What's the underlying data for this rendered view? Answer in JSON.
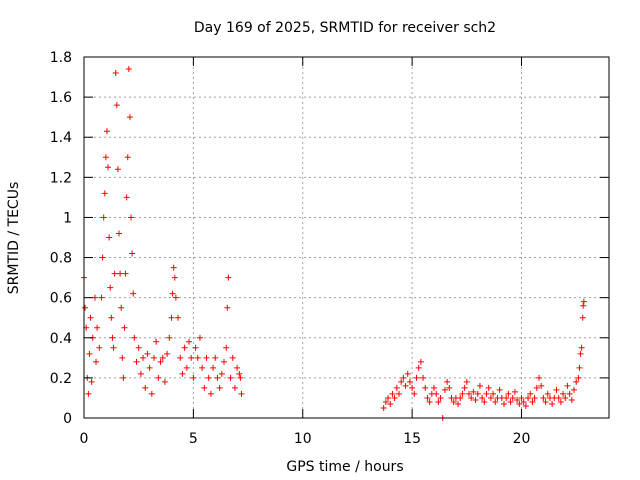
{
  "chart_data": {
    "type": "scatter",
    "title": "Day 169 of 2025, SRMTID for receiver sch2",
    "xlabel": "GPS time / hours",
    "ylabel": "SRMTID / TECUs",
    "xlim": [
      0,
      24
    ],
    "ylim": [
      0,
      1.8
    ],
    "xticks": [
      0,
      5,
      10,
      15,
      20
    ],
    "xtick_labels": [
      "0",
      "5",
      "10",
      "15",
      "20"
    ],
    "yticks": [
      0,
      0.2,
      0.4,
      0.6,
      0.8,
      1,
      1.2,
      1.4,
      1.6,
      1.8
    ],
    "ytick_labels": [
      "0",
      "0.2",
      "0.4",
      "0.6",
      "0.8",
      "1",
      "1.2",
      "1.4",
      "1.6",
      "1.8"
    ],
    "grid": true,
    "marker": "plus",
    "marker_color": "#ff0000",
    "series": [
      {
        "name": "SRMTID",
        "points": [
          [
            0.0,
            0.7
          ],
          [
            0.05,
            0.55
          ],
          [
            0.1,
            0.45
          ],
          [
            0.15,
            0.2
          ],
          [
            0.2,
            0.12
          ],
          [
            0.25,
            0.32
          ],
          [
            0.3,
            0.5
          ],
          [
            0.35,
            0.18
          ],
          [
            0.4,
            0.4
          ],
          [
            0.5,
            0.6
          ],
          [
            0.55,
            0.28
          ],
          [
            0.6,
            0.45
          ],
          [
            0.7,
            0.35
          ],
          [
            0.8,
            0.6
          ],
          [
            0.85,
            0.8
          ],
          [
            0.9,
            1.0
          ],
          [
            0.95,
            1.12
          ],
          [
            1.0,
            1.3
          ],
          [
            1.05,
            1.43
          ],
          [
            1.1,
            1.25
          ],
          [
            1.15,
            0.9
          ],
          [
            1.2,
            0.65
          ],
          [
            1.25,
            0.5
          ],
          [
            1.3,
            0.4
          ],
          [
            1.35,
            0.35
          ],
          [
            1.4,
            0.72
          ],
          [
            1.45,
            1.72
          ],
          [
            1.5,
            1.56
          ],
          [
            1.55,
            1.24
          ],
          [
            1.6,
            0.92
          ],
          [
            1.65,
            0.72
          ],
          [
            1.7,
            0.55
          ],
          [
            1.75,
            0.3
          ],
          [
            1.8,
            0.2
          ],
          [
            1.85,
            0.45
          ],
          [
            1.9,
            0.72
          ],
          [
            1.95,
            1.1
          ],
          [
            2.0,
            1.3
          ],
          [
            2.05,
            1.74
          ],
          [
            2.1,
            1.5
          ],
          [
            2.15,
            1.0
          ],
          [
            2.2,
            0.82
          ],
          [
            2.25,
            0.62
          ],
          [
            2.3,
            0.4
          ],
          [
            2.4,
            0.28
          ],
          [
            2.5,
            0.35
          ],
          [
            2.6,
            0.22
          ],
          [
            2.7,
            0.3
          ],
          [
            2.8,
            0.15
          ],
          [
            2.9,
            0.32
          ],
          [
            3.0,
            0.25
          ],
          [
            3.1,
            0.12
          ],
          [
            3.2,
            0.3
          ],
          [
            3.3,
            0.38
          ],
          [
            3.4,
            0.2
          ],
          [
            3.5,
            0.28
          ],
          [
            3.6,
            0.3
          ],
          [
            3.7,
            0.18
          ],
          [
            3.8,
            0.32
          ],
          [
            3.9,
            0.4
          ],
          [
            4.0,
            0.5
          ],
          [
            4.05,
            0.62
          ],
          [
            4.1,
            0.75
          ],
          [
            4.15,
            0.7
          ],
          [
            4.2,
            0.6
          ],
          [
            4.3,
            0.5
          ],
          [
            4.4,
            0.3
          ],
          [
            4.5,
            0.22
          ],
          [
            4.6,
            0.35
          ],
          [
            4.7,
            0.25
          ],
          [
            4.8,
            0.38
          ],
          [
            4.9,
            0.3
          ],
          [
            5.0,
            0.2
          ],
          [
            5.1,
            0.35
          ],
          [
            5.2,
            0.3
          ],
          [
            5.3,
            0.4
          ],
          [
            5.4,
            0.25
          ],
          [
            5.5,
            0.15
          ],
          [
            5.6,
            0.3
          ],
          [
            5.7,
            0.2
          ],
          [
            5.8,
            0.12
          ],
          [
            5.9,
            0.25
          ],
          [
            6.0,
            0.3
          ],
          [
            6.1,
            0.2
          ],
          [
            6.2,
            0.15
          ],
          [
            6.3,
            0.22
          ],
          [
            6.4,
            0.28
          ],
          [
            6.5,
            0.35
          ],
          [
            6.55,
            0.55
          ],
          [
            6.6,
            0.7
          ],
          [
            6.7,
            0.2
          ],
          [
            6.8,
            0.3
          ],
          [
            6.9,
            0.15
          ],
          [
            7.0,
            0.25
          ],
          [
            7.1,
            0.22
          ],
          [
            7.15,
            0.2
          ],
          [
            7.2,
            0.12
          ],
          [
            13.7,
            0.05
          ],
          [
            13.8,
            0.08
          ],
          [
            13.9,
            0.1
          ],
          [
            14.0,
            0.07
          ],
          [
            14.1,
            0.12
          ],
          [
            14.2,
            0.1
          ],
          [
            14.3,
            0.15
          ],
          [
            14.4,
            0.12
          ],
          [
            14.5,
            0.18
          ],
          [
            14.6,
            0.2
          ],
          [
            14.7,
            0.16
          ],
          [
            14.8,
            0.22
          ],
          [
            14.9,
            0.18
          ],
          [
            15.0,
            0.15
          ],
          [
            15.1,
            0.12
          ],
          [
            15.2,
            0.2
          ],
          [
            15.3,
            0.25
          ],
          [
            15.4,
            0.28
          ],
          [
            15.5,
            0.2
          ],
          [
            15.6,
            0.15
          ],
          [
            15.7,
            0.1
          ],
          [
            15.8,
            0.08
          ],
          [
            15.9,
            0.12
          ],
          [
            16.0,
            0.15
          ],
          [
            16.1,
            0.12
          ],
          [
            16.2,
            0.08
          ],
          [
            16.3,
            0.1
          ],
          [
            16.4,
            0.0
          ],
          [
            16.5,
            0.14
          ],
          [
            16.6,
            0.18
          ],
          [
            16.7,
            0.15
          ],
          [
            16.8,
            0.1
          ],
          [
            16.9,
            0.08
          ],
          [
            17.0,
            0.1
          ],
          [
            17.1,
            0.07
          ],
          [
            17.2,
            0.1
          ],
          [
            17.3,
            0.12
          ],
          [
            17.4,
            0.15
          ],
          [
            17.5,
            0.18
          ],
          [
            17.6,
            0.12
          ],
          [
            17.7,
            0.1
          ],
          [
            17.8,
            0.13
          ],
          [
            17.9,
            0.09
          ],
          [
            18.0,
            0.12
          ],
          [
            18.1,
            0.16
          ],
          [
            18.2,
            0.1
          ],
          [
            18.3,
            0.08
          ],
          [
            18.4,
            0.12
          ],
          [
            18.5,
            0.15
          ],
          [
            18.6,
            0.1
          ],
          [
            18.7,
            0.12
          ],
          [
            18.8,
            0.08
          ],
          [
            18.9,
            0.1
          ],
          [
            19.0,
            0.14
          ],
          [
            19.1,
            0.1
          ],
          [
            19.2,
            0.07
          ],
          [
            19.3,
            0.1
          ],
          [
            19.4,
            0.12
          ],
          [
            19.5,
            0.08
          ],
          [
            19.6,
            0.1
          ],
          [
            19.7,
            0.13
          ],
          [
            19.8,
            0.09
          ],
          [
            19.9,
            0.07
          ],
          [
            20.0,
            0.1
          ],
          [
            20.1,
            0.08
          ],
          [
            20.2,
            0.06
          ],
          [
            20.3,
            0.1
          ],
          [
            20.4,
            0.12
          ],
          [
            20.5,
            0.08
          ],
          [
            20.6,
            0.1
          ],
          [
            20.7,
            0.15
          ],
          [
            20.8,
            0.2
          ],
          [
            20.9,
            0.16
          ],
          [
            21.0,
            0.1
          ],
          [
            21.1,
            0.08
          ],
          [
            21.2,
            0.12
          ],
          [
            21.3,
            0.1
          ],
          [
            21.4,
            0.07
          ],
          [
            21.5,
            0.1
          ],
          [
            21.6,
            0.14
          ],
          [
            21.7,
            0.1
          ],
          [
            21.8,
            0.08
          ],
          [
            21.9,
            0.12
          ],
          [
            22.0,
            0.1
          ],
          [
            22.1,
            0.16
          ],
          [
            22.2,
            0.12
          ],
          [
            22.3,
            0.09
          ],
          [
            22.4,
            0.14
          ],
          [
            22.5,
            0.18
          ],
          [
            22.6,
            0.2
          ],
          [
            22.65,
            0.25
          ],
          [
            22.7,
            0.32
          ],
          [
            22.75,
            0.35
          ],
          [
            22.8,
            0.5
          ],
          [
            22.82,
            0.56
          ],
          [
            22.85,
            0.58
          ]
        ]
      }
    ]
  }
}
